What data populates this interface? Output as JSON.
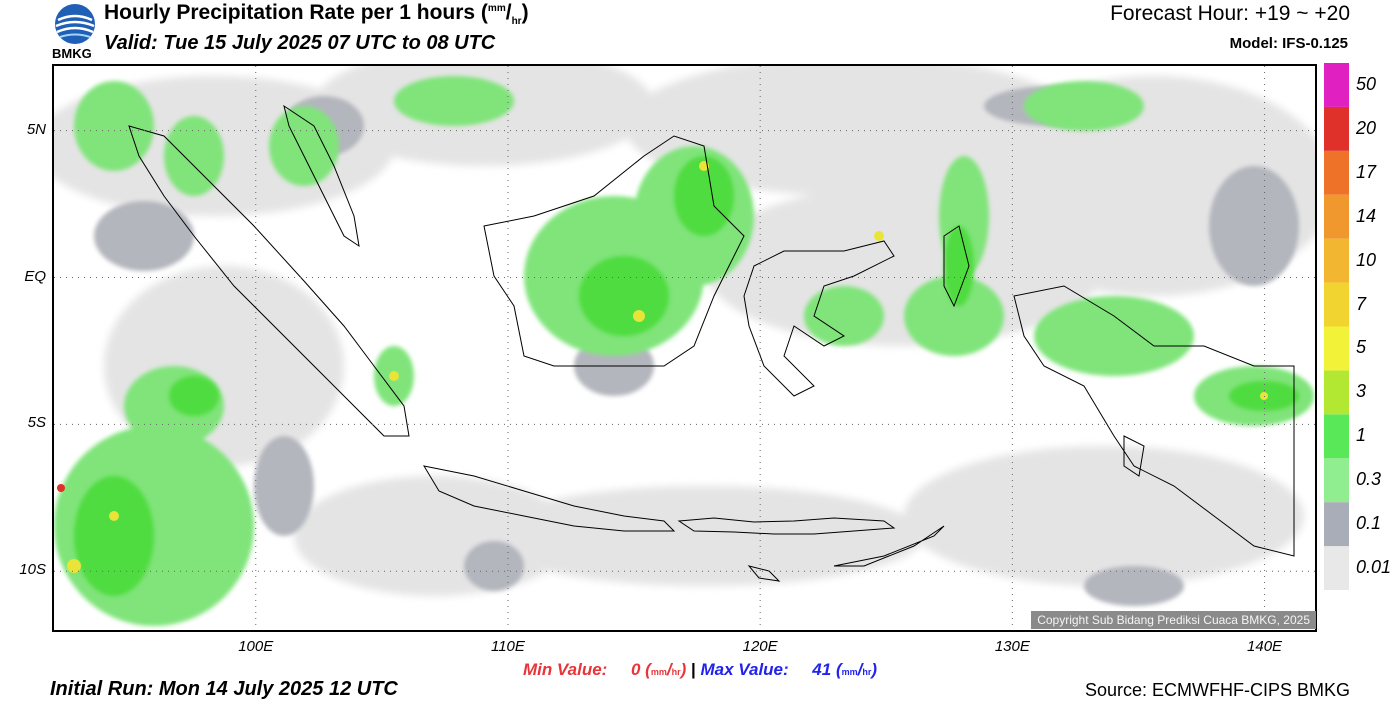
{
  "header": {
    "logo_text": "BMKG",
    "title": "Hourly Precipitation Rate per 1 hours",
    "title_unit_top": "mm",
    "title_unit_bottom": "hr",
    "valid": "Valid: Tue 15 July 2025 07 UTC to 08 UTC",
    "forecast_hour": "Forecast Hour: +19 ~ +20",
    "model": "Model: IFS-0.125"
  },
  "map": {
    "lat_labels": [
      "5N",
      "EQ",
      "5S",
      "10S"
    ],
    "lon_labels": [
      "100E",
      "110E",
      "120E",
      "130E",
      "140E"
    ],
    "extent": {
      "lon_min": 92,
      "lon_max": 142,
      "lat_min": -12,
      "lat_max": 7.2
    },
    "grid_lines": true,
    "copyright": "Copyright Sub Bidang Prediksi Cuaca BMKG, 2025"
  },
  "legend": {
    "levels": [
      "0.01",
      "0.1",
      "0.3",
      "1",
      "3",
      "5",
      "7",
      "10",
      "14",
      "17",
      "20",
      "50"
    ],
    "colors": [
      "#e8e8e8",
      "#a9adb7",
      "#90ee90",
      "#58e858",
      "#b2e832",
      "#f2f239",
      "#f2d430",
      "#f2b630",
      "#f0982e",
      "#ee7228",
      "#e0302a",
      "#e020c0"
    ]
  },
  "footer": {
    "min_label": "Min Value:",
    "min_value": "0",
    "separator": "|",
    "max_label": "Max Value:",
    "max_value": "41",
    "unit_top": "mm",
    "unit_bottom": "hr",
    "initial_run": "Initial Run: Mon 14 July 2025 12 UTC",
    "source": "Source: ECMWFHF-CIPS BMKG"
  }
}
